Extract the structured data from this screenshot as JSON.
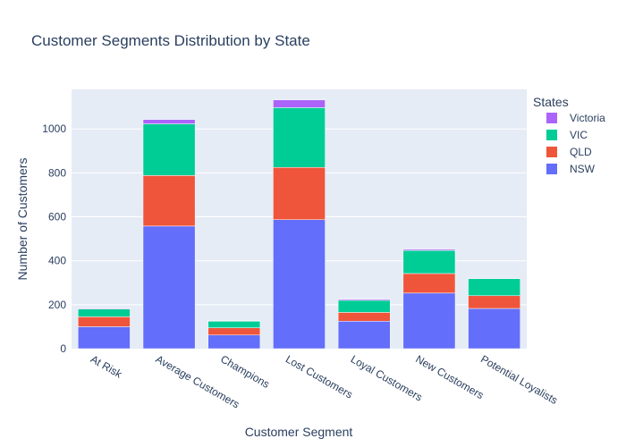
{
  "chart_data": {
    "type": "bar",
    "stacked": true,
    "title": "Customer Segments Distribution by State",
    "xlabel": "Customer Segment",
    "ylabel": "Number of Customers",
    "ylim": [
      0,
      1180
    ],
    "yticks": [
      0,
      200,
      400,
      600,
      800,
      1000
    ],
    "grid": true,
    "legend_title": "States",
    "legend_position": "top-right",
    "categories": [
      "At Risk",
      "Average Customers",
      "Champions",
      "Lost Customers",
      "Loyal Customers",
      "New Customers",
      "Potential Loyalists"
    ],
    "series": [
      {
        "name": "NSW",
        "color": "#636efa",
        "values": [
          100,
          558,
          62,
          587,
          125,
          253,
          183
        ]
      },
      {
        "name": "QLD",
        "color": "#ef553b",
        "values": [
          45,
          230,
          33,
          238,
          40,
          89,
          58
        ]
      },
      {
        "name": "VIC",
        "color": "#00cc96",
        "values": [
          35,
          235,
          30,
          272,
          55,
          105,
          78
        ]
      },
      {
        "name": "Victoria",
        "color": "#ab63fa",
        "values": [
          3,
          20,
          2,
          35,
          5,
          5,
          1
        ]
      }
    ]
  }
}
